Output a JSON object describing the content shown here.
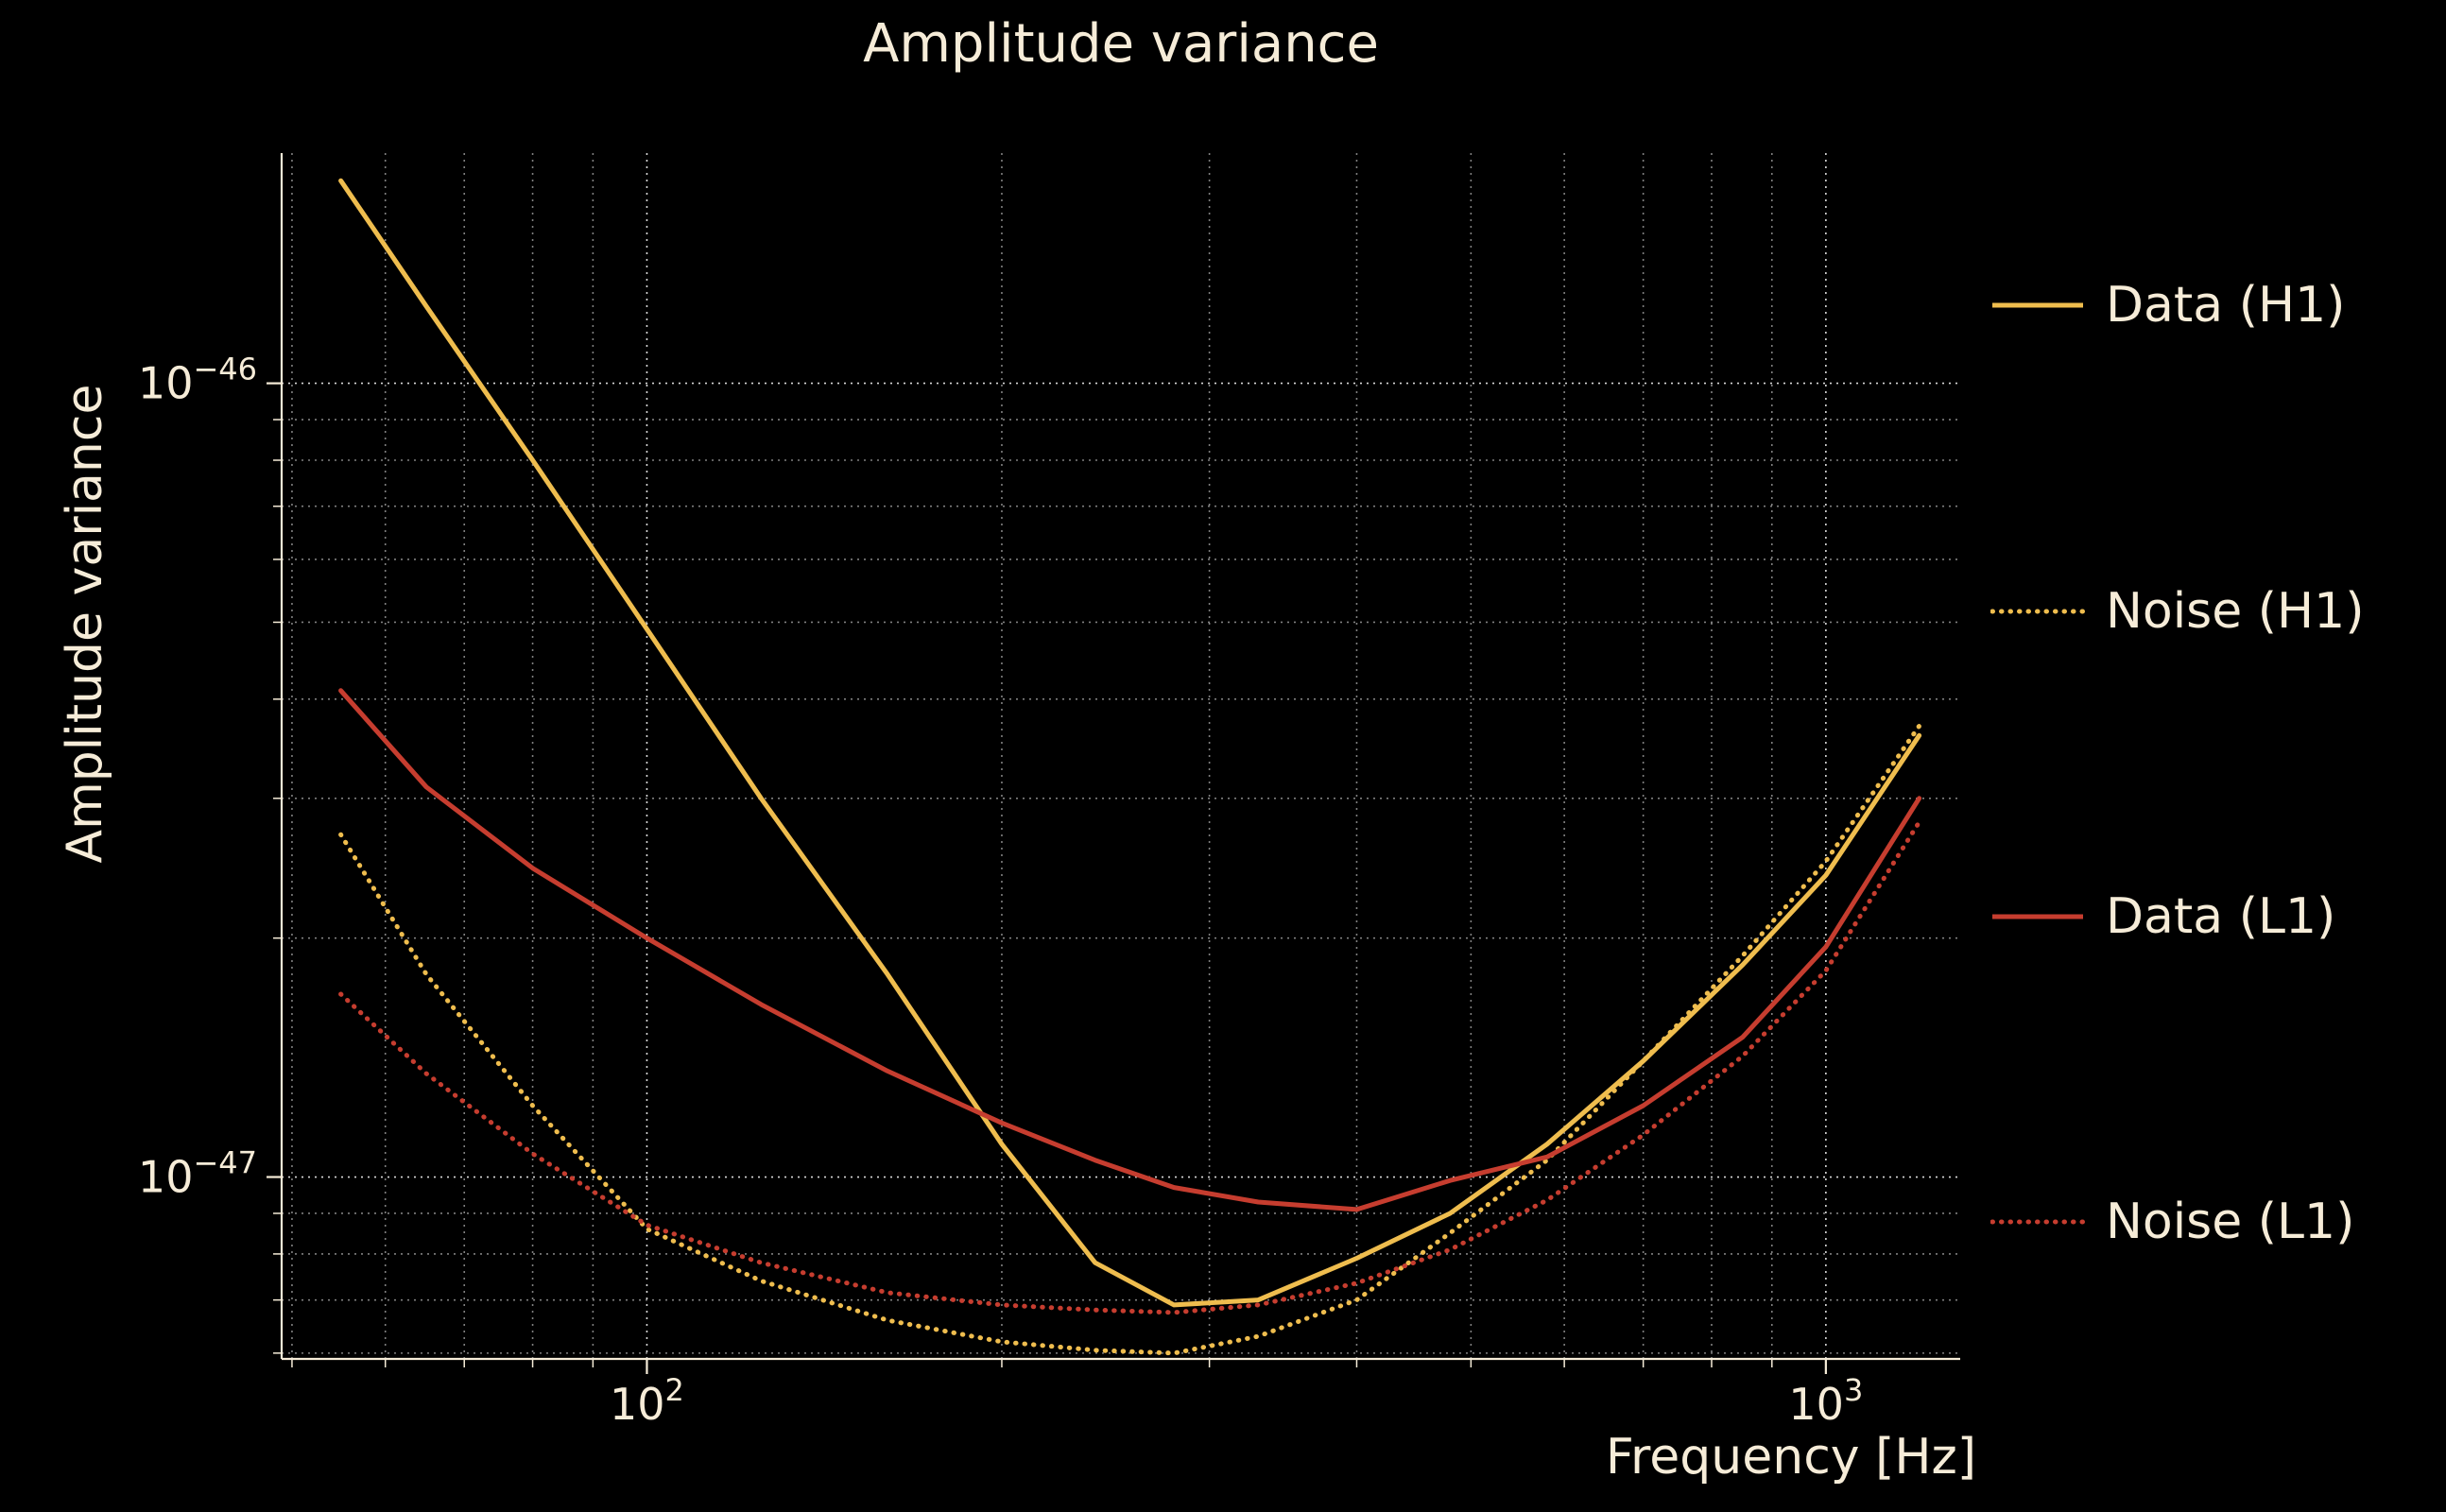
{
  "colors": {
    "background": "#000000",
    "text": "#f6ecd8",
    "grid_line": "#ffffff",
    "gold": "#efbd4e",
    "red": "#c63d2f"
  },
  "chart_data": {
    "type": "line",
    "title": "Amplitude variance",
    "xlabel": "Frequency [Hz]",
    "ylabel": "Amplitude variance",
    "x_scale": "log",
    "y_scale": "log",
    "xlim": [
      49,
      1300
    ],
    "ylim": [
      5.9e-48,
      1.95e-46
    ],
    "grid": {
      "major": true,
      "minor": true,
      "style": "dotted"
    },
    "legend_position": "right-outside",
    "x_ticks": [
      {
        "value": 100,
        "base": "10",
        "exp": "2"
      },
      {
        "value": 1000,
        "base": "10",
        "exp": "3"
      }
    ],
    "y_ticks": [
      {
        "value": 1e-46,
        "base": "10",
        "exp": "−46"
      },
      {
        "value": 1e-47,
        "base": "10",
        "exp": "−47"
      }
    ],
    "x": [
      55,
      65,
      80,
      100,
      125,
      160,
      200,
      240,
      280,
      330,
      400,
      480,
      580,
      700,
      850,
      1000,
      1200
    ],
    "series": [
      {
        "name": "Data (H1)",
        "color": "#efbd4e",
        "line_style": "solid",
        "values": [
          1.8e-46,
          1.25e-46,
          8e-47,
          4.9e-47,
          3e-47,
          1.8e-47,
          1.1e-47,
          7.8e-48,
          6.9e-48,
          7e-48,
          7.9e-48,
          9e-48,
          1.1e-47,
          1.4e-47,
          1.85e-47,
          2.4e-47,
          3.6e-47
        ]
      },
      {
        "name": "Noise (H1)",
        "color": "#efbd4e",
        "line_style": "dotted",
        "values": [
          2.7e-47,
          1.8e-47,
          1.23e-47,
          8.6e-48,
          7.4e-48,
          6.6e-48,
          6.2e-48,
          6.05e-48,
          6e-48,
          6.3e-48,
          7e-48,
          8.5e-48,
          1.05e-47,
          1.4e-47,
          1.9e-47,
          2.5e-47,
          3.7e-47
        ]
      },
      {
        "name": "Data (L1)",
        "color": "#c63d2f",
        "line_style": "solid",
        "values": [
          4.1e-47,
          3.1e-47,
          2.45e-47,
          2e-47,
          1.65e-47,
          1.36e-47,
          1.17e-47,
          1.05e-47,
          9.7e-48,
          9.3e-48,
          9.1e-48,
          9.9e-48,
          1.06e-47,
          1.23e-47,
          1.5e-47,
          1.95e-47,
          3e-47
        ]
      },
      {
        "name": "Noise (L1)",
        "color": "#c63d2f",
        "line_style": "dotted",
        "values": [
          1.7e-47,
          1.35e-47,
          1.07e-47,
          8.7e-48,
          7.8e-48,
          7.15e-48,
          6.9e-48,
          6.8e-48,
          6.75e-48,
          6.9e-48,
          7.35e-48,
          8.1e-48,
          9.35e-48,
          1.13e-47,
          1.42e-47,
          1.82e-47,
          2.8e-47
        ]
      }
    ]
  }
}
